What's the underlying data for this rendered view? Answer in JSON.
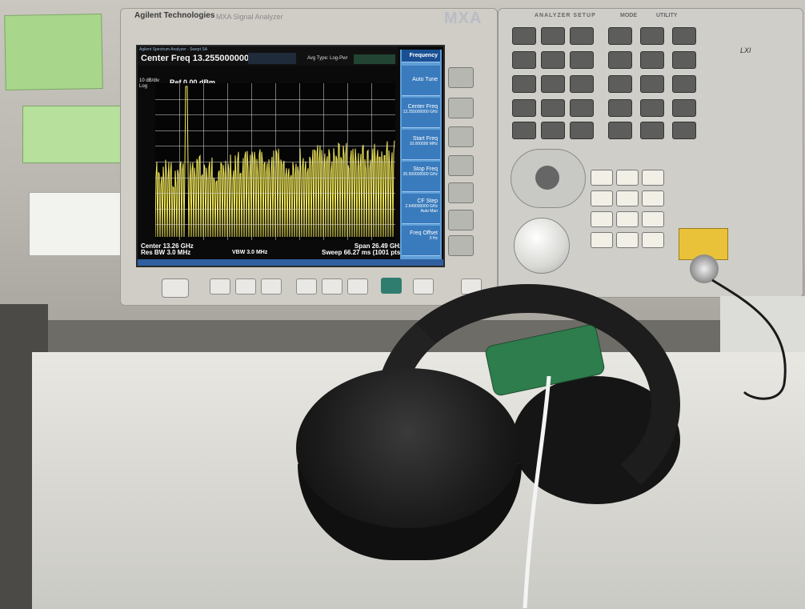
{
  "instrument": {
    "brand": "Agilent Technologies",
    "model_text": "MXA Signal Analyzer",
    "series": "MXA",
    "lxi": "LXI",
    "panel_labels": {
      "analyzer_setup": "ANALYZER SETUP",
      "mode": "MODE",
      "utility": "UTILITY"
    }
  },
  "screen": {
    "title_strip": "Agilent Spectrum Analyzer - Swept SA",
    "center_freq": "Center Freq 13.255000000 GHz",
    "avg_type": "Avg Type: Log-Pwr",
    "scale": "10 dB/div",
    "scale_mode": "Log",
    "ref_level": "Ref 0.00 dBm",
    "center": "Center 13.26 GHz",
    "res_bw": "Res BW 3.0 MHz",
    "vbw": "VBW 3.0 MHz",
    "span": "Span 26.49 GHz",
    "sweep": "Sweep 66.27 ms (1001 pts)",
    "softkeys": {
      "menu": "Frequency",
      "auto_tune": "Auto Tune",
      "center_freq": "Center Freq",
      "center_freq_value": "13.255000000 GHz",
      "start_freq": "Start Freq",
      "start_freq_value": "10.000000 MHz",
      "stop_freq": "Stop Freq",
      "stop_freq_value": "26.500000000 GHz",
      "cf_step": "CF Step",
      "cf_step_value": "2.649000000 GHz",
      "cf_step_auto": "Auto",
      "cf_step_man": "Man",
      "freq_offset": "Freq Offset",
      "freq_offset_value": "0 Hz"
    }
  },
  "colors": {
    "trace": "#f4ea5a",
    "softkey": "#3a7bbd",
    "pcb": "#2e7d4c"
  },
  "trace": {
    "spike_pos": 0.13,
    "noise_start": 0.58,
    "noise_end": 0.45
  }
}
